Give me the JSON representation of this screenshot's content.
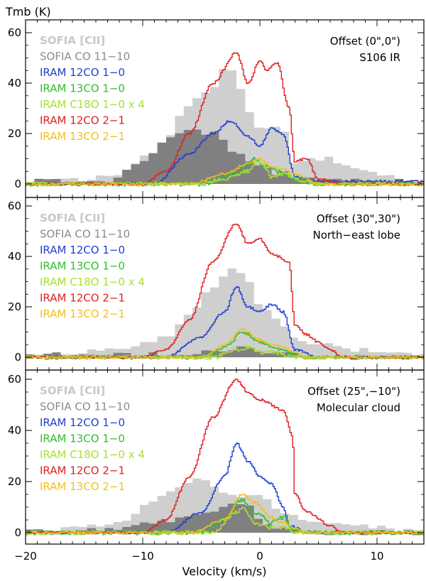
{
  "chart_data": {
    "type": "line",
    "title": "",
    "ylabel": "Tmb (K)",
    "xlabel": "Velocity (km/s)",
    "xlim": [
      -20,
      14
    ],
    "ylim": [
      -2,
      62
    ],
    "xticks": [
      -20,
      -10,
      0,
      10
    ],
    "xtick_labels": [
      "−20",
      "−10",
      "0",
      "10"
    ],
    "yticks": [
      0,
      20,
      40,
      60
    ],
    "ytick_labels": [
      "0",
      "20",
      "40",
      "60"
    ],
    "legend_entries": [
      {
        "name": "SOFIA [CII]",
        "color": "#cfcfcf",
        "style": "histogram-fill"
      },
      {
        "name": "SOFIA CO 11−10",
        "color": "#808080",
        "style": "histogram-fill"
      },
      {
        "name": "IRAM 12CO 1−0",
        "color": "#1f3fd0",
        "style": "line"
      },
      {
        "name": "IRAM 13CO 1−0",
        "color": "#2fc02f",
        "style": "line"
      },
      {
        "name": "IRAM C18O 1−0 x 4",
        "color": "#a8e030",
        "style": "line"
      },
      {
        "name": "IRAM 12CO 2−1",
        "color": "#e02020",
        "style": "line"
      },
      {
        "name": "IRAM 13CO 2−1",
        "color": "#f0c020",
        "style": "line"
      }
    ],
    "panels": [
      {
        "offset": "Offset (0\",0\")",
        "region": "S106 IR",
        "legend": [
          "SOFIA [CII]",
          "SOFIA CO 11−10",
          "IRAM 12CO 1−0",
          "IRAM 13CO 1−0",
          "IRAM C18O 1−0 x 4",
          "IRAM 12CO 2−1",
          "IRAM 13CO 2−1"
        ],
        "series": [
          {
            "name": "SOFIA [CII]",
            "peaks": [
              [
                -17,
                1
              ],
              [
                -12,
                4
              ],
              [
                -9,
                12
              ],
              [
                -6,
                30
              ],
              [
                -5,
                35
              ],
              [
                -4,
                38
              ],
              [
                -3,
                46
              ],
              [
                -2,
                43
              ],
              [
                -1,
                28
              ],
              [
                0,
                22
              ],
              [
                1,
                22
              ],
              [
                2,
                21
              ],
              [
                3,
                8
              ],
              [
                4,
                10
              ],
              [
                6,
                10
              ],
              [
                8,
                7
              ],
              [
                10,
                4
              ],
              [
                13,
                1
              ]
            ]
          },
          {
            "name": "SOFIA CO 11−10",
            "peaks": [
              [
                -13,
                1
              ],
              [
                -10,
                8
              ],
              [
                -8,
                18
              ],
              [
                -6,
                21
              ],
              [
                -4,
                20
              ],
              [
                -2,
                13
              ],
              [
                0,
                7
              ],
              [
                2,
                4
              ],
              [
                4,
                2
              ],
              [
                6,
                1
              ]
            ]
          },
          {
            "name": "IRAM 12CO 1−0",
            "peaks": [
              [
                -9,
                0
              ],
              [
                -6,
                12
              ],
              [
                -4,
                20
              ],
              [
                -2.5,
                25
              ],
              [
                -1,
                19
              ],
              [
                0,
                15
              ],
              [
                1,
                22
              ],
              [
                2,
                20
              ],
              [
                3,
                3
              ],
              [
                5,
                1
              ]
            ]
          },
          {
            "name": "IRAM 13CO 1−0",
            "peaks": [
              [
                -5,
                0
              ],
              [
                -2,
                4
              ],
              [
                -0.5,
                10
              ],
              [
                0.5,
                7
              ],
              [
                1.5,
                5
              ],
              [
                3,
                2
              ],
              [
                5,
                0
              ]
            ]
          },
          {
            "name": "IRAM C18O 1−0 x 4",
            "peaks": [
              [
                -5,
                0
              ],
              [
                -3,
                2
              ],
              [
                -1,
                5
              ],
              [
                0,
                9
              ],
              [
                1,
                3
              ],
              [
                2,
                4
              ],
              [
                4,
                1
              ],
              [
                5,
                0
              ]
            ]
          },
          {
            "name": "IRAM 12CO 2−1",
            "peaks": [
              [
                -10,
                0
              ],
              [
                -8,
                5
              ],
              [
                -6,
                20
              ],
              [
                -4,
                40
              ],
              [
                -2,
                52
              ],
              [
                -1,
                40
              ],
              [
                0,
                49
              ],
              [
                0.6,
                45
              ],
              [
                1.5,
                48
              ],
              [
                2.5,
                30
              ],
              [
                3,
                9
              ],
              [
                4,
                10
              ],
              [
                5,
                2
              ],
              [
                7,
                0
              ]
            ]
          },
          {
            "name": "IRAM 13CO 2−1",
            "peaks": [
              [
                -6,
                0
              ],
              [
                -3,
                4
              ],
              [
                -1,
                8
              ],
              [
                0,
                10
              ],
              [
                1,
                7
              ],
              [
                2,
                6
              ],
              [
                3,
                4
              ],
              [
                5,
                0
              ]
            ]
          }
        ]
      },
      {
        "offset": "Offset (30\",30\")",
        "region": "North−east lobe",
        "legend": [
          "SOFIA [CII]",
          "SOFIA CO 11−10",
          "IRAM 12CO 1−0",
          "IRAM 13CO 1−0",
          "IRAM C18O 1−0 x 4",
          "IRAM 12CO 2−1",
          "IRAM 13CO 2−1"
        ],
        "series": [
          {
            "name": "SOFIA [CII]",
            "peaks": [
              [
                -17,
                1
              ],
              [
                -12,
                3
              ],
              [
                -8,
                8
              ],
              [
                -6,
                18
              ],
              [
                -4,
                28
              ],
              [
                -2,
                36
              ],
              [
                -1,
                30
              ],
              [
                0,
                20
              ],
              [
                1,
                18
              ],
              [
                2,
                12
              ],
              [
                3,
                7
              ],
              [
                5,
                5
              ],
              [
                8,
                3
              ],
              [
                12,
                1
              ]
            ]
          },
          {
            "name": "SOFIA CO 11−10",
            "peaks": [
              [
                -8,
                1
              ],
              [
                -5,
                2
              ],
              [
                -3,
                3
              ],
              [
                -1,
                4
              ],
              [
                1,
                2
              ],
              [
                3,
                1
              ],
              [
                5,
                0
              ]
            ]
          },
          {
            "name": "IRAM 12CO 1−0",
            "peaks": [
              [
                -8,
                0
              ],
              [
                -5,
                8
              ],
              [
                -3,
                18
              ],
              [
                -2,
                28
              ],
              [
                -1,
                20
              ],
              [
                0,
                18
              ],
              [
                1,
                21
              ],
              [
                2,
                18
              ],
              [
                3,
                3
              ],
              [
                5,
                0
              ]
            ]
          },
          {
            "name": "IRAM 13CO 1−0",
            "peaks": [
              [
                -5,
                0
              ],
              [
                -3,
                4
              ],
              [
                -1.5,
                10
              ],
              [
                0,
                6
              ],
              [
                1,
                4
              ],
              [
                2,
                3
              ],
              [
                3,
                1
              ],
              [
                4,
                0
              ]
            ]
          },
          {
            "name": "IRAM C18O 1−0 x 4",
            "peaks": [
              [
                -4,
                0
              ],
              [
                -2,
                3
              ],
              [
                -1,
                4
              ],
              [
                0,
                2
              ],
              [
                1,
                2
              ],
              [
                3,
                0
              ]
            ]
          },
          {
            "name": "IRAM 12CO 2−1",
            "peaks": [
              [
                -10,
                0
              ],
              [
                -8,
                3
              ],
              [
                -6,
                15
              ],
              [
                -4,
                38
              ],
              [
                -2,
                53
              ],
              [
                -1,
                45
              ],
              [
                0,
                47
              ],
              [
                1,
                41
              ],
              [
                2.5,
                38
              ],
              [
                3,
                13
              ],
              [
                4,
                9
              ],
              [
                5,
                6
              ],
              [
                6,
                3
              ],
              [
                7,
                0
              ]
            ]
          },
          {
            "name": "IRAM 13CO 2−1",
            "peaks": [
              [
                -5,
                0
              ],
              [
                -3,
                5
              ],
              [
                -1.5,
                11
              ],
              [
                0,
                7
              ],
              [
                1,
                5
              ],
              [
                2,
                4
              ],
              [
                3,
                2
              ],
              [
                4,
                0
              ]
            ]
          }
        ]
      },
      {
        "offset": "Offset (25\",−10\")",
        "region": "Molecular cloud",
        "legend": [
          "SOFIA [CII]",
          "SOFIA CO 11−10",
          "IRAM 12CO 1−0",
          "IRAM 13CO 1−0",
          "IRAM C18O 1−0 x 4",
          "IRAM 12CO 2−1",
          "IRAM 13CO 2−1"
        ],
        "series": [
          {
            "name": "SOFIA [CII]",
            "peaks": [
              [
                -17,
                1
              ],
              [
                -12,
                4
              ],
              [
                -9,
                12
              ],
              [
                -7,
                18
              ],
              [
                -5,
                22
              ],
              [
                -4,
                18
              ],
              [
                -2,
                14
              ],
              [
                0,
                14
              ],
              [
                2,
                8
              ],
              [
                4,
                5
              ],
              [
                7,
                3
              ],
              [
                10,
                2
              ],
              [
                13,
                1
              ]
            ]
          },
          {
            "name": "SOFIA CO 11−10",
            "peaks": [
              [
                -14,
                1
              ],
              [
                -10,
                3
              ],
              [
                -6,
                6
              ],
              [
                -3,
                10
              ],
              [
                -1.5,
                12
              ],
              [
                0,
                6
              ],
              [
                1,
                3
              ],
              [
                2,
                1
              ],
              [
                4,
                0
              ]
            ]
          },
          {
            "name": "IRAM 12CO 1−0",
            "peaks": [
              [
                -8,
                0
              ],
              [
                -5,
                8
              ],
              [
                -3,
                22
              ],
              [
                -2,
                35
              ],
              [
                -1,
                28
              ],
              [
                0,
                22
              ],
              [
                1,
                19
              ],
              [
                2,
                10
              ],
              [
                2.5,
                3
              ],
              [
                4,
                0
              ]
            ]
          },
          {
            "name": "IRAM 13CO 1−0",
            "peaks": [
              [
                -5,
                0
              ],
              [
                -3,
                5
              ],
              [
                -1.5,
                13
              ],
              [
                -0.5,
                8
              ],
              [
                1,
                4
              ],
              [
                2,
                6
              ],
              [
                3,
                1
              ],
              [
                5,
                0
              ]
            ]
          },
          {
            "name": "IRAM C18O 1−0 x 4",
            "peaks": [
              [
                -4,
                0
              ],
              [
                -2,
                8
              ],
              [
                -1.5,
                10
              ],
              [
                -0.5,
                4
              ],
              [
                1,
                2
              ],
              [
                2,
                2
              ],
              [
                3,
                0
              ]
            ]
          },
          {
            "name": "IRAM 12CO 2−1",
            "peaks": [
              [
                -10,
                0
              ],
              [
                -8,
                5
              ],
              [
                -6,
                22
              ],
              [
                -4,
                45
              ],
              [
                -2,
                60
              ],
              [
                -1,
                55
              ],
              [
                0,
                52
              ],
              [
                2,
                48
              ],
              [
                2.8,
                38
              ],
              [
                3,
                15
              ],
              [
                4,
                8
              ],
              [
                6,
                3
              ],
              [
                7,
                0
              ]
            ]
          },
          {
            "name": "IRAM 13CO 2−1",
            "peaks": [
              [
                -6,
                0
              ],
              [
                -3,
                5
              ],
              [
                -1.5,
                15
              ],
              [
                -0.5,
                12
              ],
              [
                1,
                6
              ],
              [
                2,
                4
              ],
              [
                3,
                2
              ],
              [
                4,
                0
              ]
            ]
          }
        ]
      }
    ]
  }
}
